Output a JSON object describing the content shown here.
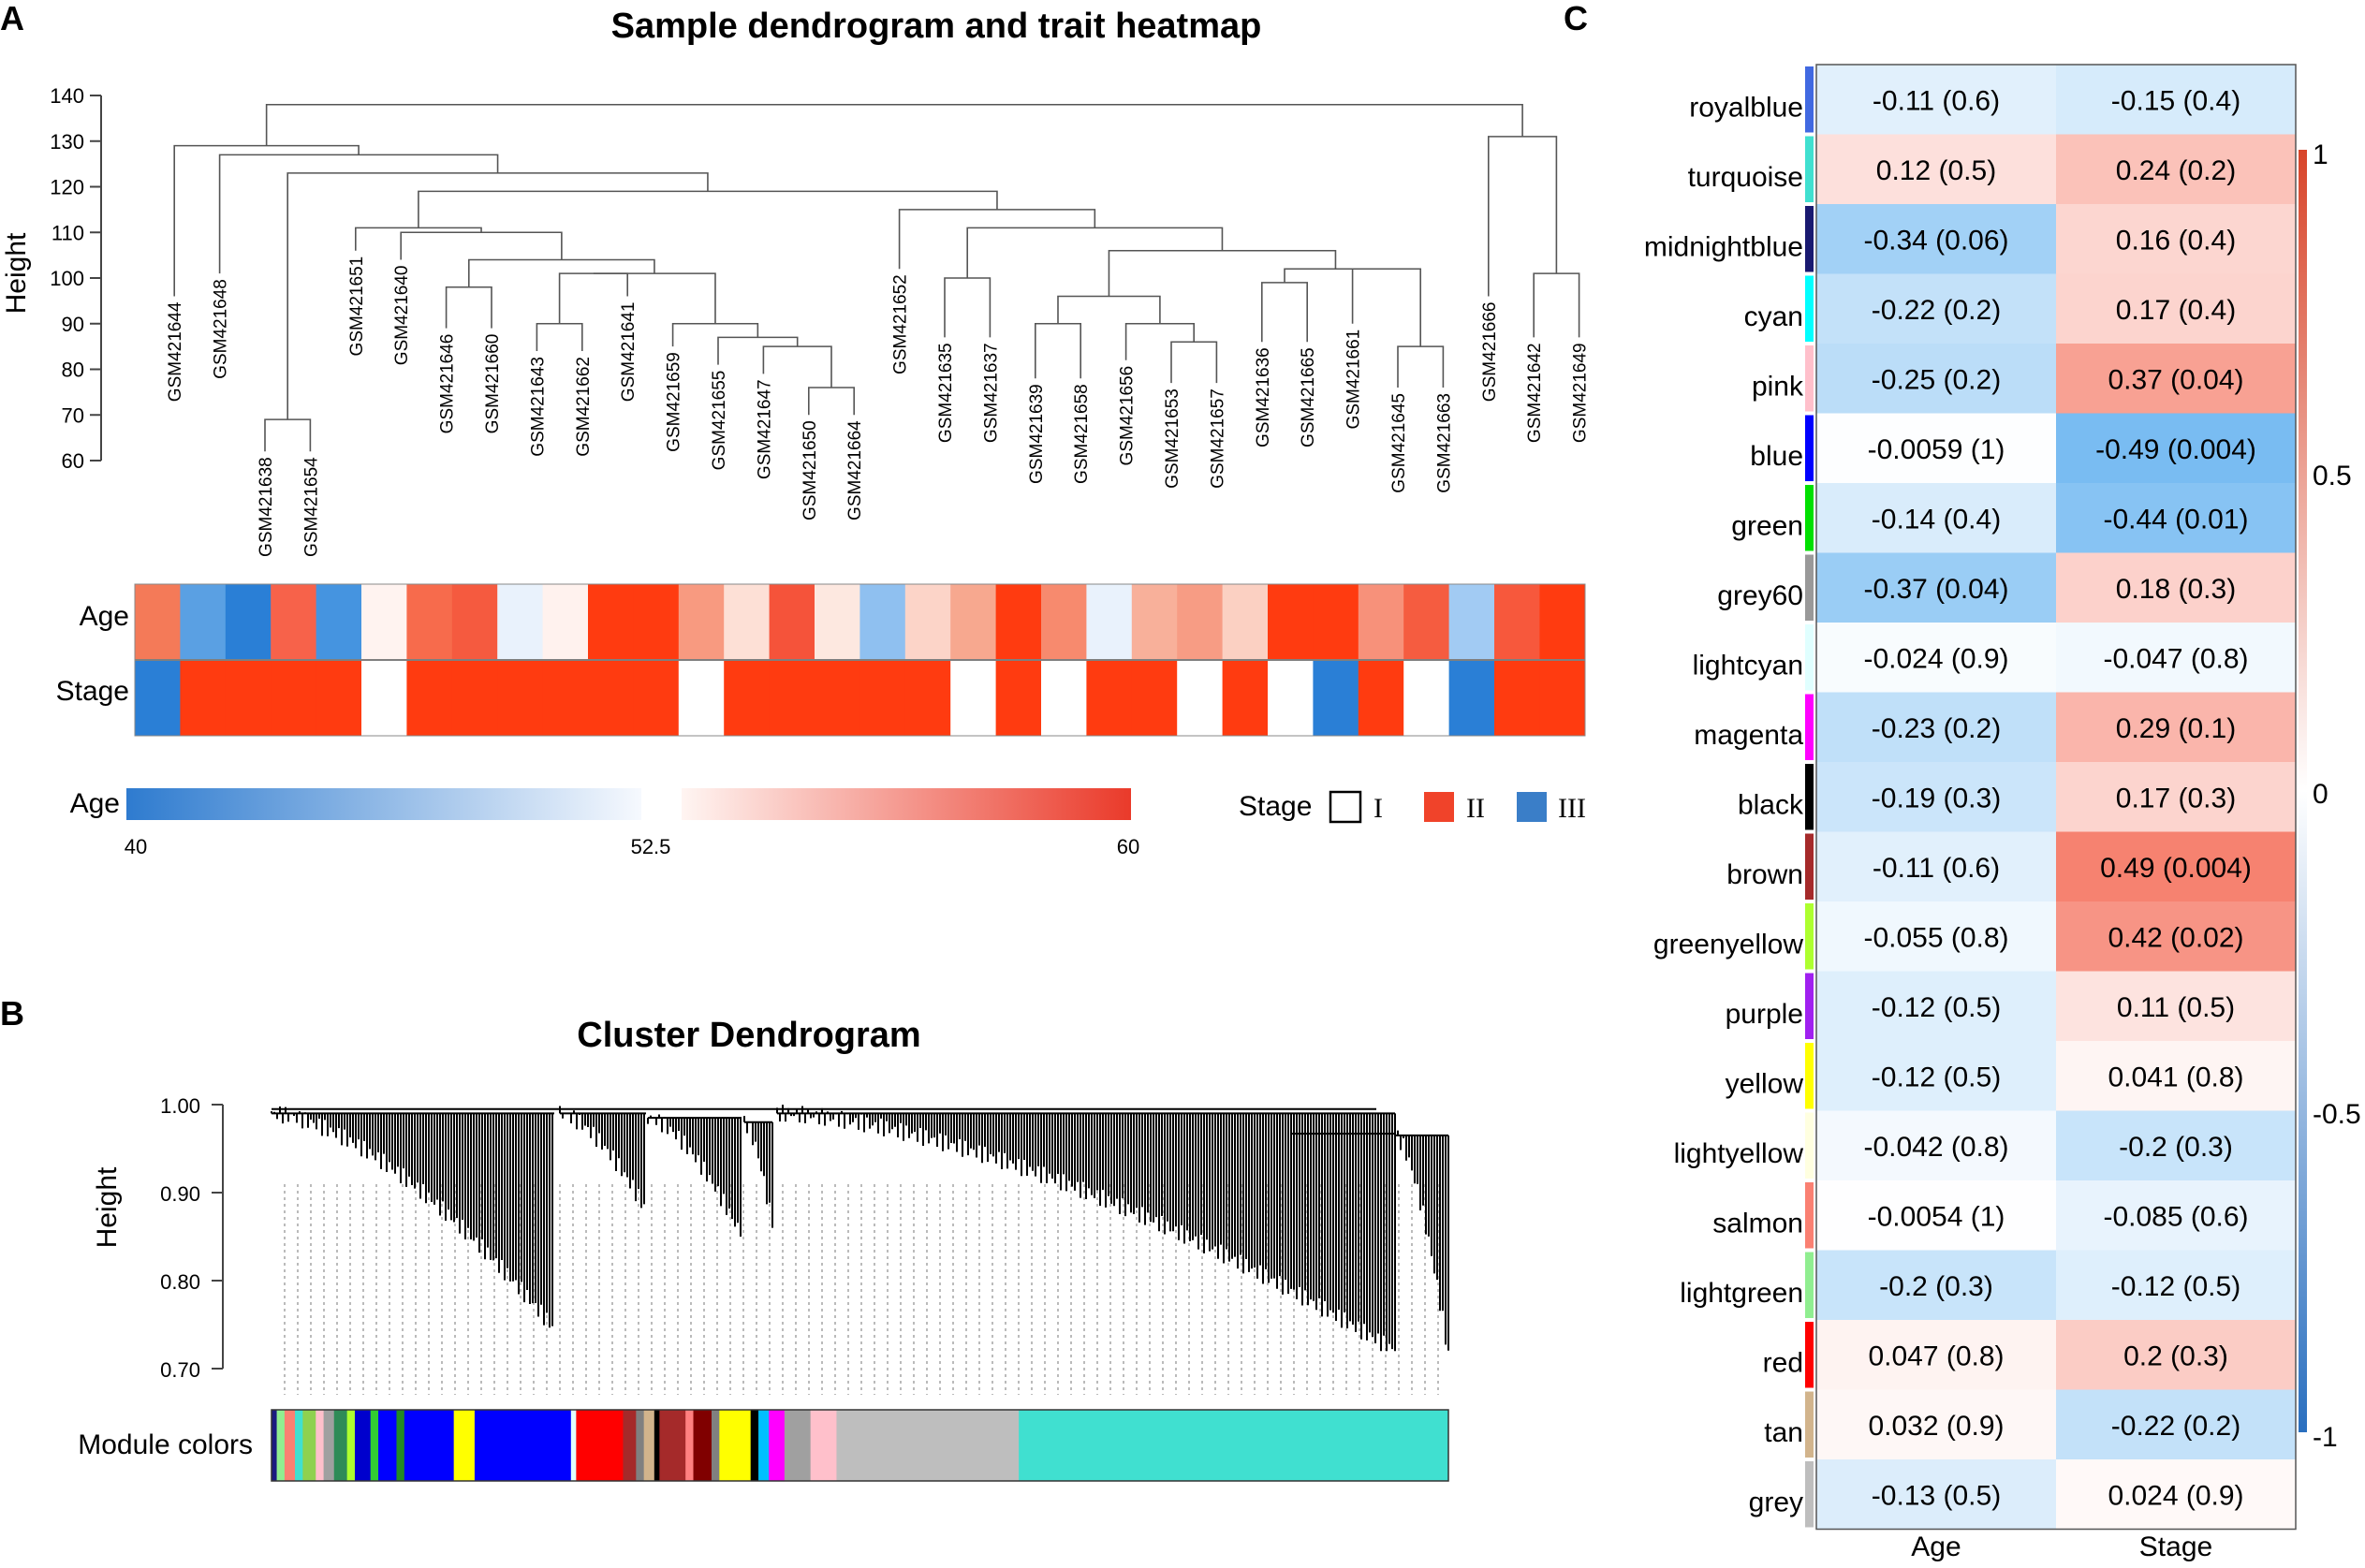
{
  "panel_letters": [
    "A",
    "B",
    "C"
  ],
  "chart_data": [
    {
      "type": "dendrogram",
      "panel": "A",
      "title": "Sample dendrogram and trait heatmap",
      "ylabel": "Height",
      "ylim": [
        60,
        140
      ],
      "yticks": [
        60,
        70,
        80,
        90,
        100,
        110,
        120,
        130,
        140
      ],
      "leaves": [
        {
          "label": "GSM421644",
          "end": 96
        },
        {
          "label": "GSM421648",
          "end": 101
        },
        {
          "label": "GSM421638",
          "end": 62
        },
        {
          "label": "GSM421654",
          "end": 62
        },
        {
          "label": "GSM421651",
          "end": 106
        },
        {
          "label": "GSM421640",
          "end": 104
        },
        {
          "label": "GSM421646",
          "end": 89
        },
        {
          "label": "GSM421660",
          "end": 89
        },
        {
          "label": "GSM421643",
          "end": 84
        },
        {
          "label": "GSM421662",
          "end": 84
        },
        {
          "label": "GSM421641",
          "end": 96
        },
        {
          "label": "GSM421659",
          "end": 85
        },
        {
          "label": "GSM421655",
          "end": 81
        },
        {
          "label": "GSM421647",
          "end": 79
        },
        {
          "label": "GSM421650",
          "end": 70
        },
        {
          "label": "GSM421664",
          "end": 70
        },
        {
          "label": "GSM421652",
          "end": 102
        },
        {
          "label": "GSM421635",
          "end": 87
        },
        {
          "label": "GSM421637",
          "end": 87
        },
        {
          "label": "GSM421639",
          "end": 78
        },
        {
          "label": "GSM421658",
          "end": 78
        },
        {
          "label": "GSM421656",
          "end": 82
        },
        {
          "label": "GSM421653",
          "end": 77
        },
        {
          "label": "GSM421657",
          "end": 77
        },
        {
          "label": "GSM421636",
          "end": 86
        },
        {
          "label": "GSM421665",
          "end": 86
        },
        {
          "label": "GSM421661",
          "end": 90
        },
        {
          "label": "GSM421645",
          "end": 76
        },
        {
          "label": "GSM421663",
          "end": 76
        },
        {
          "label": "GSM421666",
          "end": 96
        },
        {
          "label": "GSM421642",
          "end": 87
        },
        {
          "label": "GSM421649",
          "end": 87
        }
      ],
      "merges": [
        {
          "a": "L2",
          "b": "L3",
          "h": 69
        },
        {
          "a": "L14",
          "b": "L15",
          "h": 76
        },
        {
          "a": "L13",
          "b": "M1",
          "h": 85
        },
        {
          "a": "L12",
          "b": "M2",
          "h": 87
        },
        {
          "a": "L11",
          "b": "M3",
          "h": 90
        },
        {
          "a": "L8",
          "b": "L9",
          "h": 90
        },
        {
          "a": "L6",
          "b": "L7",
          "h": 98
        },
        {
          "a": "M5",
          "b": "L10",
          "h": 101
        },
        {
          "a": "M7",
          "b": "M4",
          "h": 101
        },
        {
          "a": "M6",
          "b": "M8",
          "h": 104
        },
        {
          "a": "L5",
          "b": "M9",
          "h": 110
        },
        {
          "a": "L4",
          "b": "M10",
          "h": 111
        },
        {
          "a": "L22",
          "b": "L23",
          "h": 86
        },
        {
          "a": "L21",
          "b": "M12",
          "h": 90
        },
        {
          "a": "L19",
          "b": "L20",
          "h": 90
        },
        {
          "a": "M14",
          "b": "M13",
          "h": 96
        },
        {
          "a": "L24",
          "b": "L25",
          "h": 99
        },
        {
          "a": "L27",
          "b": "L28",
          "h": 85
        },
        {
          "a": "L26",
          "b": "M17",
          "h": 102
        },
        {
          "a": "M16",
          "b": "M18",
          "h": 102
        },
        {
          "a": "M15",
          "b": "M19",
          "h": 106
        },
        {
          "a": "L17",
          "b": "L18",
          "h": 100
        },
        {
          "a": "M21",
          "b": "M20",
          "h": 111
        },
        {
          "a": "L16",
          "b": "M22",
          "h": 115
        },
        {
          "a": "M11",
          "b": "M23",
          "h": 119
        },
        {
          "a": "M24",
          "b": "M0",
          "h": 123
        },
        {
          "a": "L1",
          "b": "M25",
          "h": 127
        },
        {
          "a": "L30",
          "b": "L31",
          "h": 101
        },
        {
          "a": "L29",
          "b": "M27",
          "h": 131
        },
        {
          "a": "L0",
          "b": "M26",
          "h": 129
        },
        {
          "a": "M29",
          "b": "M28",
          "h": 138
        }
      ],
      "heatmap_rows": [
        "Age",
        "Stage"
      ],
      "age_color_legend": {
        "label": "Age",
        "min": 40,
        "mid": 52.5,
        "max": 60
      },
      "age_colors": [
        "#f47a58",
        "#5aa0e3",
        "#2a7fd6",
        "#f7624a",
        "#4594e0",
        "#fff3f0",
        "#f76b4c",
        "#f55a3f",
        "#e9f2fc",
        "#fff2ee",
        "#ff3b10",
        "#ff3b10",
        "#f89a80",
        "#fde0d6",
        "#f5533a",
        "#fde8e0",
        "#8fc0f0",
        "#fcd4c8",
        "#f7a88f",
        "#ff3b10",
        "#f78a6e",
        "#e9f2fc",
        "#f8b09a",
        "#f79c84",
        "#fbd0c2",
        "#ff3b10",
        "#ff3b10",
        "#f7917a",
        "#f55c40",
        "#a2cbf3",
        "#f7583c",
        "#ff3b10"
      ],
      "stage_colors": [
        "#2a7fd6",
        "#ff3b10",
        "#ff3b10",
        "#ff3b10",
        "#ff3b10",
        "#ffffff",
        "#ff3b10",
        "#ff3b10",
        "#ff3b10",
        "#ff3b10",
        "#ff3b10",
        "#ff3b10",
        "#ffffff",
        "#ff3b10",
        "#ff3b10",
        "#ff3b10",
        "#ff3b10",
        "#ff3b10",
        "#ffffff",
        "#ff3b10",
        "#ffffff",
        "#ff3b10",
        "#ff3b10",
        "#ffffff",
        "#ff3b10",
        "#ffffff",
        "#2a7fd6",
        "#ff3b10",
        "#ffffff",
        "#2a7fd6",
        "#ff3b10",
        "#ff3b10"
      ],
      "stage_legend": {
        "label": "Stage",
        "items": [
          {
            "label": "I",
            "color": "#ffffff"
          },
          {
            "label": "II",
            "color": "#f0432a"
          },
          {
            "label": "III",
            "color": "#3a7ec8"
          }
        ]
      }
    },
    {
      "type": "dendrogram",
      "panel": "B",
      "title": "Cluster Dendrogram",
      "ylabel": "Height",
      "ylim": [
        0.7,
        1.0
      ],
      "yticks": [
        "1.00",
        "0.90",
        "0.80",
        "0.70"
      ],
      "module_colors_label": "Module colors",
      "module_strip": [
        {
          "color": "#1a1a80",
          "frac": 0.004
        },
        {
          "color": "#90ee90",
          "frac": 0.006
        },
        {
          "color": "#fa8072",
          "frac": 0.008
        },
        {
          "color": "#40e0d0",
          "frac": 0.006
        },
        {
          "color": "#8fd14f",
          "frac": 0.01
        },
        {
          "color": "#ffc0cb",
          "frac": 0.006
        },
        {
          "color": "#a0a0a0",
          "frac": 0.008
        },
        {
          "color": "#2e8b57",
          "frac": 0.01
        },
        {
          "color": "#adff2f",
          "frac": 0.006
        },
        {
          "color": "#0000cd",
          "frac": 0.012
        },
        {
          "color": "#32cd32",
          "frac": 0.006
        },
        {
          "color": "#0000ff",
          "frac": 0.014
        },
        {
          "color": "#228b22",
          "frac": 0.006
        },
        {
          "color": "#0000ff",
          "frac": 0.038
        },
        {
          "color": "#ffff00",
          "frac": 0.016
        },
        {
          "color": "#0000ff",
          "frac": 0.074
        },
        {
          "color": "#e0ffff",
          "frac": 0.004
        },
        {
          "color": "#ff0000",
          "frac": 0.036
        },
        {
          "color": "#a52a2a",
          "frac": 0.01
        },
        {
          "color": "#808080",
          "frac": 0.006
        },
        {
          "color": "#d2b48c",
          "frac": 0.008
        },
        {
          "color": "#000000",
          "frac": 0.004
        },
        {
          "color": "#a52a2a",
          "frac": 0.02
        },
        {
          "color": "#ff8080",
          "frac": 0.006
        },
        {
          "color": "#800000",
          "frac": 0.014
        },
        {
          "color": "#808080",
          "frac": 0.006
        },
        {
          "color": "#ffff00",
          "frac": 0.024
        },
        {
          "color": "#000000",
          "frac": 0.006
        },
        {
          "color": "#00bfff",
          "frac": 0.008
        },
        {
          "color": "#ff00ff",
          "frac": 0.012
        },
        {
          "color": "#a0a0a0",
          "frac": 0.02
        },
        {
          "color": "#ffc0cb",
          "frac": 0.02
        },
        {
          "color": "#bebebe",
          "frac": 0.14
        },
        {
          "color": "#40e0d0",
          "frac": 0.33
        }
      ]
    },
    {
      "type": "heatmap",
      "panel": "C",
      "columns": [
        "Age",
        "Stage"
      ],
      "color_scale": {
        "min": -1,
        "max": 1,
        "ticks": [
          "1",
          "0.5",
          "0",
          "-0.5",
          "-1"
        ]
      },
      "rows": [
        {
          "module": "royalblue",
          "color": "#4169e1",
          "age": "-0.11 (0.6)",
          "stage": "-0.15 (0.4)",
          "age_r": -0.11,
          "stage_r": -0.15
        },
        {
          "module": "turquoise",
          "color": "#40e0d0",
          "age": "0.12 (0.5)",
          "stage": "0.24 (0.2)",
          "age_r": 0.12,
          "stage_r": 0.24
        },
        {
          "module": "midnightblue",
          "color": "#191970",
          "age": "-0.34 (0.06)",
          "stage": "0.16 (0.4)",
          "age_r": -0.34,
          "stage_r": 0.16
        },
        {
          "module": "cyan",
          "color": "#00ffff",
          "age": "-0.22 (0.2)",
          "stage": "0.17 (0.4)",
          "age_r": -0.22,
          "stage_r": 0.17
        },
        {
          "module": "pink",
          "color": "#ffc0cb",
          "age": "-0.25 (0.2)",
          "stage": "0.37 (0.04)",
          "age_r": -0.25,
          "stage_r": 0.37
        },
        {
          "module": "blue",
          "color": "#0000ff",
          "age": "-0.0059 (1)",
          "stage": "-0.49 (0.004)",
          "age_r": -0.0059,
          "stage_r": -0.49
        },
        {
          "module": "green",
          "color": "#00e000",
          "age": "-0.14 (0.4)",
          "stage": "-0.44 (0.01)",
          "age_r": -0.14,
          "stage_r": -0.44
        },
        {
          "module": "grey60",
          "color": "#999999",
          "age": "-0.37 (0.04)",
          "stage": "0.18 (0.3)",
          "age_r": -0.37,
          "stage_r": 0.18
        },
        {
          "module": "lightcyan",
          "color": "#e0ffff",
          "age": "-0.024 (0.9)",
          "stage": "-0.047 (0.8)",
          "age_r": -0.024,
          "stage_r": -0.047
        },
        {
          "module": "magenta",
          "color": "#ff00ff",
          "age": "-0.23 (0.2)",
          "stage": "0.29 (0.1)",
          "age_r": -0.23,
          "stage_r": 0.29
        },
        {
          "module": "black",
          "color": "#000000",
          "age": "-0.19 (0.3)",
          "stage": "0.17 (0.3)",
          "age_r": -0.19,
          "stage_r": 0.17
        },
        {
          "module": "brown",
          "color": "#a52a2a",
          "age": "-0.11 (0.6)",
          "stage": "0.49 (0.004)",
          "age_r": -0.11,
          "stage_r": 0.49
        },
        {
          "module": "greenyellow",
          "color": "#adff2f",
          "age": "-0.055 (0.8)",
          "stage": "0.42 (0.02)",
          "age_r": -0.055,
          "stage_r": 0.42
        },
        {
          "module": "purple",
          "color": "#a020f0",
          "age": "-0.12 (0.5)",
          "stage": "0.11 (0.5)",
          "age_r": -0.12,
          "stage_r": 0.11
        },
        {
          "module": "yellow",
          "color": "#ffff00",
          "age": "-0.12 (0.5)",
          "stage": "0.041 (0.8)",
          "age_r": -0.12,
          "stage_r": 0.041
        },
        {
          "module": "lightyellow",
          "color": "#ffffe0",
          "age": "-0.042 (0.8)",
          "stage": "-0.2 (0.3)",
          "age_r": -0.042,
          "stage_r": -0.2
        },
        {
          "module": "salmon",
          "color": "#fa8072",
          "age": "-0.0054 (1)",
          "stage": "-0.085 (0.6)",
          "age_r": -0.0054,
          "stage_r": -0.085
        },
        {
          "module": "lightgreen",
          "color": "#90ee90",
          "age": "-0.2 (0.3)",
          "stage": "-0.12 (0.5)",
          "age_r": -0.2,
          "stage_r": -0.12
        },
        {
          "module": "red",
          "color": "#ff0000",
          "age": "0.047 (0.8)",
          "stage": "0.2 (0.3)",
          "age_r": 0.047,
          "stage_r": 0.2
        },
        {
          "module": "tan",
          "color": "#d2b48c",
          "age": "0.032 (0.9)",
          "stage": "-0.22 (0.2)",
          "age_r": 0.032,
          "stage_r": -0.22
        },
        {
          "module": "grey",
          "color": "#bebebe",
          "age": "-0.13 (0.5)",
          "stage": "0.024 (0.9)",
          "age_r": -0.13,
          "stage_r": 0.024
        }
      ]
    }
  ]
}
